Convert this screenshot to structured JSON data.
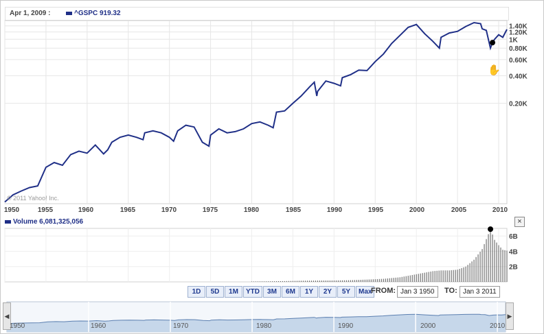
{
  "tooltip": {
    "date": "Apr 1, 2009 :",
    "symbol": "^GSPC 919.32"
  },
  "watermark": "© 2011 Yahoo! Inc.",
  "volume": {
    "label": "Volume 6,081,325,056"
  },
  "close_icon": "close-icon",
  "hand_icon": "hand-cursor-icon",
  "ranges": [
    "1D",
    "5D",
    "1M",
    "YTD",
    "3M",
    "6M",
    "1Y",
    "2Y",
    "5Y",
    "Max"
  ],
  "from": {
    "label": "FROM:",
    "value": "Jan 3 1950"
  },
  "to": {
    "label": "TO:",
    "value": "Jan 3 2011"
  },
  "navigator": {
    "labels": [
      "1950",
      "1960",
      "1970",
      "1980",
      "1990",
      "2000",
      "2010"
    ]
  },
  "colors": {
    "line": "#1f2f87",
    "volume": "#555555",
    "navigator_fill": "#c6d7ea"
  },
  "chart_data": [
    {
      "type": "line",
      "title": "^GSPC",
      "y_scale": "log",
      "x_tick_labels": [
        "1950",
        "1955",
        "1960",
        "1965",
        "1970",
        "1975",
        "1980",
        "1985",
        "1990",
        "1995",
        "2000",
        "2005",
        "2010"
      ],
      "y_tick_labels": [
        "1.40K",
        "1.20K",
        "1K",
        "0.80K",
        "0.60K",
        "0.40K",
        "0.20K"
      ],
      "y_ticks": [
        1400,
        1200,
        1000,
        800,
        600,
        400,
        200
      ],
      "grid": true,
      "marker": {
        "x": "2009-04-01",
        "y": 919.32
      },
      "series": [
        {
          "x": [
            1950.0,
            1951,
            1952,
            1953,
            1954,
            1955,
            1956,
            1957,
            1958,
            1959,
            1960,
            1961,
            1962,
            1962.5,
            1963,
            1964,
            1965,
            1966,
            1966.8,
            1967,
            1968,
            1969,
            1970,
            1970.5,
            1971,
            1972,
            1973,
            1974,
            1974.8,
            1975,
            1976,
            1977,
            1978,
            1979,
            1980,
            1981,
            1982,
            1982.6,
            1983,
            1984,
            1985,
            1986,
            1987,
            1987.6,
            1987.9,
            1988,
            1989,
            1990,
            1990.8,
            1991,
            1992,
            1993,
            1994,
            1995,
            1996,
            1997,
            1998,
            1999,
            2000,
            2001,
            2002,
            2002.8,
            2003,
            2004,
            2005,
            2006,
            2007,
            2007.8,
            2008,
            2008.5,
            2009.0,
            2009.25,
            2009.5,
            2010,
            2010.5,
            2011.0
          ],
          "y": [
            16.7,
            20,
            22,
            24,
            25,
            40,
            45,
            42,
            55,
            60,
            57,
            70,
            56,
            62,
            75,
            85,
            90,
            85,
            80,
            95,
            100,
            95,
            85,
            77,
            100,
            115,
            110,
            75,
            68,
            90,
            105,
            95,
            98,
            105,
            120,
            125,
            115,
            108,
            160,
            165,
            200,
            240,
            300,
            340,
            240,
            270,
            350,
            330,
            310,
            380,
            410,
            460,
            455,
            570,
            690,
            900,
            1100,
            1350,
            1450,
            1150,
            950,
            800,
            1050,
            1170,
            1220,
            1380,
            1520,
            1480,
            1300,
            1250,
            800,
            919.32,
            1000,
            1120,
            1050,
            1280
          ]
        }
      ]
    },
    {
      "type": "bar",
      "title": "Volume",
      "y_tick_labels": [
        "6B",
        "4B",
        "2B"
      ],
      "ylim": [
        0,
        7
      ],
      "volume_billions": {
        "x": [
          1980,
          1982,
          1984,
          1986,
          1988,
          1990,
          1992,
          1994,
          1996,
          1998,
          2000,
          2001,
          2002,
          2003,
          2004,
          2005,
          2006,
          2007,
          2008,
          2008.5,
          2009,
          2009.5,
          2010,
          2010.5,
          2011
        ],
        "y": [
          0.05,
          0.07,
          0.1,
          0.15,
          0.17,
          0.18,
          0.22,
          0.3,
          0.4,
          0.6,
          1.0,
          1.2,
          1.4,
          1.5,
          1.5,
          1.6,
          2.0,
          2.9,
          4.3,
          5.6,
          6.9,
          5.5,
          4.8,
          4.2,
          4.1
        ]
      }
    }
  ]
}
